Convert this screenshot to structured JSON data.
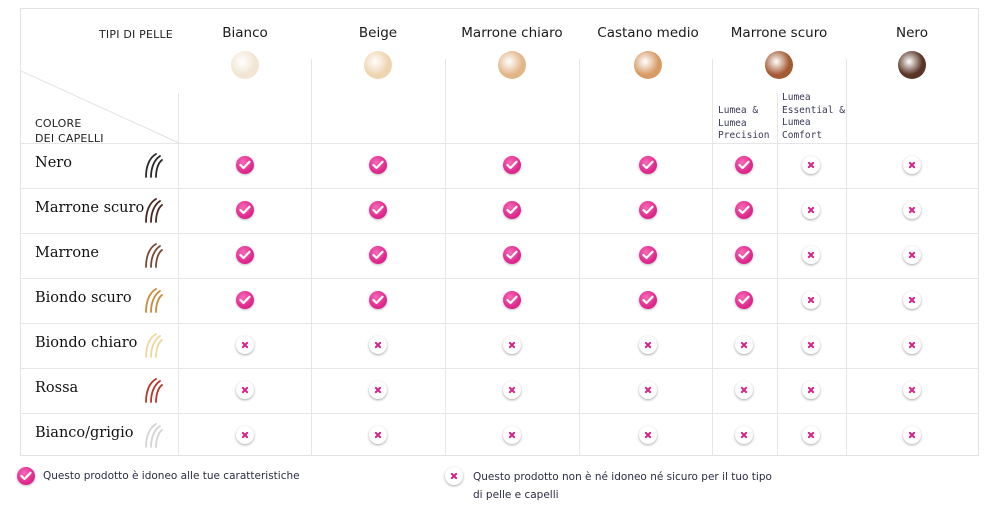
{
  "corner": {
    "skin_types_label": "TIPI DI PELLE",
    "hair_color_label_line1": "COLORE",
    "hair_color_label_line2": "DEI CAPELLI"
  },
  "skin_tones": [
    {
      "name": "Bianco",
      "color": "#f2e5d3"
    },
    {
      "name": "Beige",
      "color": "#efd4b0"
    },
    {
      "name": "Marrone chiaro",
      "color": "#e2b688"
    },
    {
      "name": "Castano medio",
      "color": "#d89b66"
    },
    {
      "name": "Marrone scuro",
      "color": "#a45a33"
    },
    {
      "name": "Nero",
      "color": "#5a3426"
    }
  ],
  "subcolumns": {
    "left": [
      "Lumea &",
      "Lumea",
      "Precision"
    ],
    "right": [
      "Lumea",
      "Essential &",
      "Lumea",
      "Comfort"
    ]
  },
  "hair_colors": [
    {
      "name": "Nero",
      "icon": "hair-strands-icon",
      "color": "#2a2a2a"
    },
    {
      "name": "Marrone scuro",
      "icon": "hair-strands-icon",
      "color": "#4a2820"
    },
    {
      "name": "Marrone",
      "icon": "hair-strands-icon",
      "color": "#7a4a36"
    },
    {
      "name": "Biondo scuro",
      "icon": "hair-strands-icon",
      "color": "#c98a3c"
    },
    {
      "name": "Biondo chiaro",
      "icon": "hair-strands-icon",
      "color": "#f0d6a0"
    },
    {
      "name": "Rossa",
      "icon": "hair-strands-icon",
      "color": "#b8352a"
    },
    {
      "name": "Bianco/grigio",
      "icon": "hair-strands-icon",
      "color": "#d4d4d4"
    }
  ],
  "columns": [
    "Bianco",
    "Beige",
    "Marrone chiaro",
    "Castano medio",
    "Marrone scuro - Lumea & Lumea Precision",
    "Marrone scuro - Lumea Essential & Lumea Comfort",
    "Nero"
  ],
  "matrix": [
    [
      true,
      true,
      true,
      true,
      true,
      false,
      false
    ],
    [
      true,
      true,
      true,
      true,
      true,
      false,
      false
    ],
    [
      true,
      true,
      true,
      true,
      true,
      false,
      false
    ],
    [
      true,
      true,
      true,
      true,
      true,
      false,
      false
    ],
    [
      false,
      false,
      false,
      false,
      false,
      false,
      false
    ],
    [
      false,
      false,
      false,
      false,
      false,
      false,
      false
    ],
    [
      false,
      false,
      false,
      false,
      false,
      false,
      false
    ]
  ],
  "legend": {
    "suitable_icon": "check-icon",
    "suitable": "Questo prodotto è idoneo alle tue caratteristiche",
    "unsuitable_icon": "cross-icon",
    "unsuitable_line1": "Questo prodotto non è né idoneo né sicuro per il tuo tipo",
    "unsuitable_line2": "di pelle e capelli"
  },
  "colors": {
    "accent": "#e0298e",
    "grid": "#e6e6e6"
  }
}
